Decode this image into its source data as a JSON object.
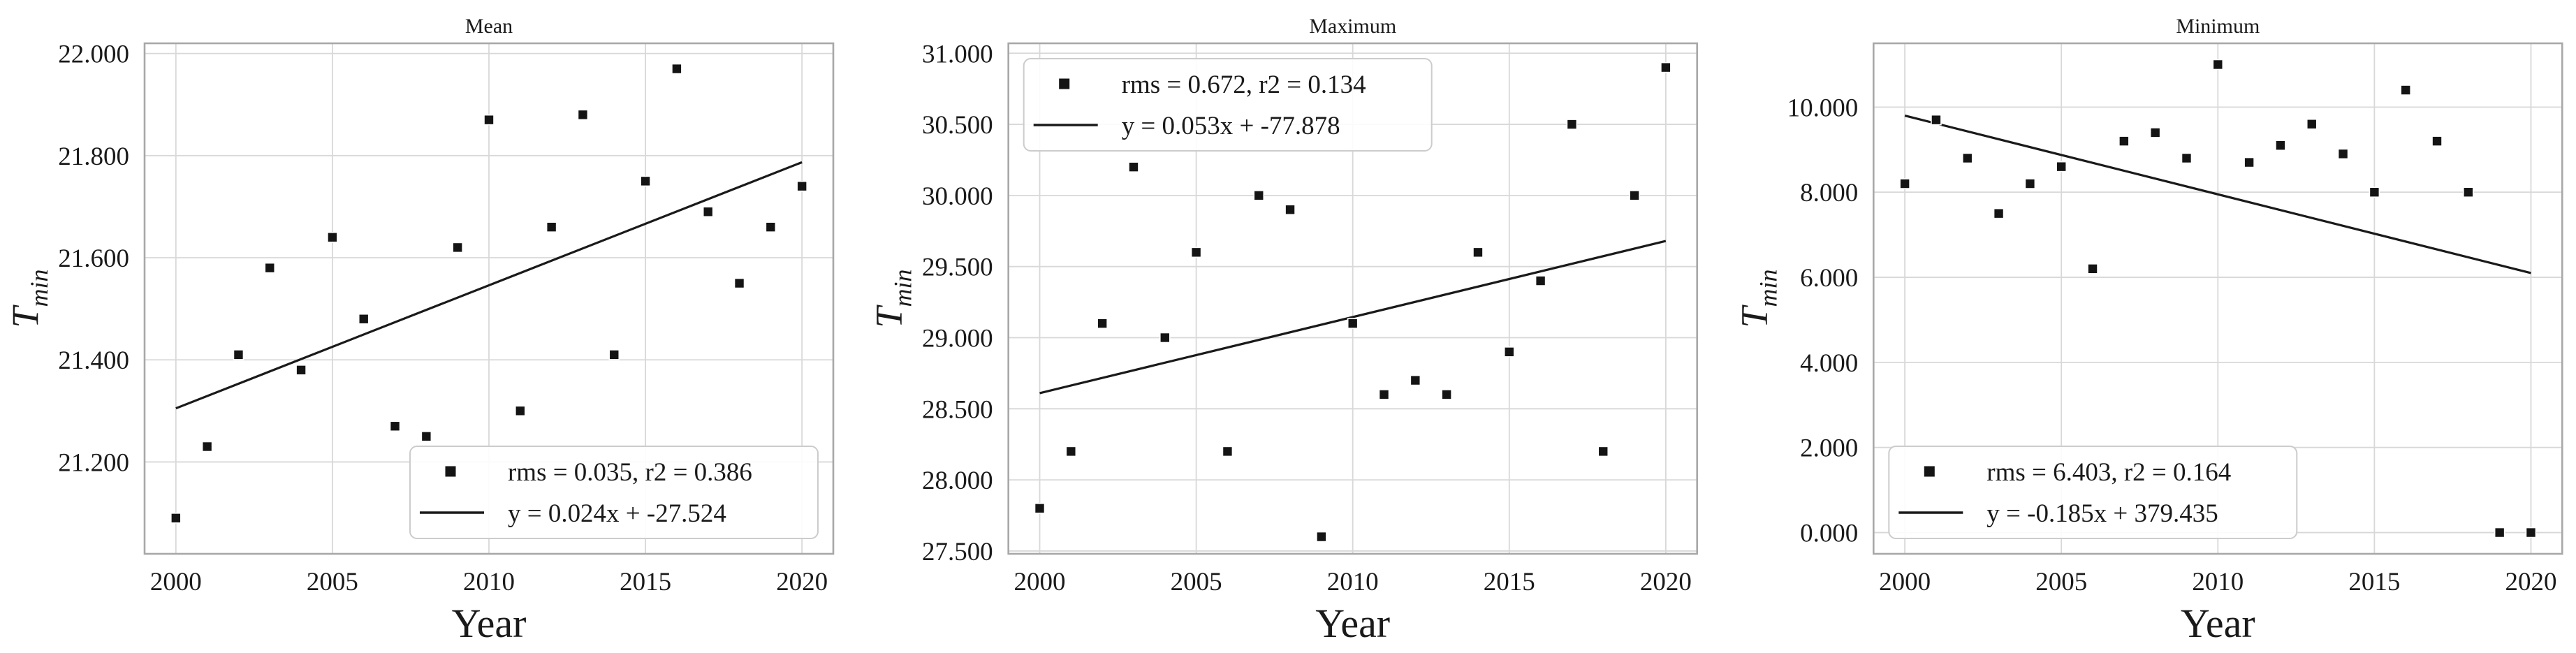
{
  "figure_title": "",
  "colors": {
    "background": "#ffffff",
    "text": "#1a1a1a",
    "title_text": "#262626",
    "grid": "#d8d8d8",
    "spine": "#a8a8a8",
    "marker": "#141414",
    "trend_line": "#1a1a1a",
    "legend_border": "#cccccc",
    "legend_fill": "#ffffff"
  },
  "chart_data": [
    {
      "type": "scatter",
      "title": "Mean",
      "xlabel": "Year",
      "ylabel": "T_min",
      "xlim": [
        1999,
        2021
      ],
      "ylim": [
        21.02,
        22.02
      ],
      "xticks": [
        2000,
        2005,
        2010,
        2015,
        2020
      ],
      "xtick_labels": [
        "2000",
        "2005",
        "2010",
        "2015",
        "2020"
      ],
      "yticks": [
        21.2,
        21.4,
        21.6,
        21.8,
        22.0
      ],
      "ytick_labels": [
        "21.200",
        "21.400",
        "21.600",
        "21.800",
        "22.000"
      ],
      "grid": true,
      "x": [
        2000,
        2001,
        2002,
        2003,
        2004,
        2005,
        2006,
        2007,
        2008,
        2009,
        2010,
        2011,
        2012,
        2013,
        2014,
        2015,
        2016,
        2017,
        2018,
        2019,
        2020
      ],
      "y": [
        21.09,
        21.23,
        21.41,
        21.58,
        21.38,
        21.64,
        21.48,
        21.27,
        21.25,
        21.62,
        21.87,
        21.3,
        21.66,
        21.88,
        21.41,
        21.75,
        21.97,
        21.69,
        21.55,
        21.66,
        21.74
      ],
      "trend": {
        "equation": "y = 0.024x + -27.524",
        "x": [
          2000,
          2020
        ],
        "y": [
          21.305,
          21.787
        ]
      },
      "legend_position": "lower right",
      "legend": [
        {
          "symbol": "square",
          "label": "rms = 0.035, r2 = 0.386"
        },
        {
          "symbol": "line",
          "label": "y = 0.024x + -27.524"
        }
      ]
    },
    {
      "type": "scatter",
      "title": "Maximum",
      "xlabel": "Year",
      "ylabel": "T_min",
      "xlim": [
        1999,
        2021
      ],
      "ylim": [
        27.48,
        31.07
      ],
      "xticks": [
        2000,
        2005,
        2010,
        2015,
        2020
      ],
      "xtick_labels": [
        "2000",
        "2005",
        "2010",
        "2015",
        "2020"
      ],
      "yticks": [
        27.5,
        28.0,
        28.5,
        29.0,
        29.5,
        30.0,
        30.5,
        31.0
      ],
      "ytick_labels": [
        "27.500",
        "28.000",
        "28.500",
        "29.000",
        "29.500",
        "30.000",
        "30.500",
        "31.000"
      ],
      "grid": true,
      "x": [
        2000,
        2001,
        2002,
        2003,
        2004,
        2005,
        2006,
        2007,
        2008,
        2009,
        2010,
        2011,
        2012,
        2013,
        2014,
        2015,
        2016,
        2017,
        2018,
        2019,
        2020
      ],
      "y": [
        27.8,
        28.2,
        29.1,
        30.2,
        29.0,
        29.6,
        28.2,
        30.0,
        29.9,
        27.6,
        29.1,
        28.6,
        28.7,
        28.6,
        29.6,
        28.9,
        29.4,
        30.5,
        28.2,
        30.0,
        30.9
      ],
      "trend": {
        "equation": "y = 0.053x + -77.878",
        "x": [
          2000,
          2020
        ],
        "y": [
          28.61,
          29.68
        ]
      },
      "legend_position": "upper left",
      "legend": [
        {
          "symbol": "square",
          "label": "rms = 0.672, r2 = 0.134"
        },
        {
          "symbol": "line",
          "label": "y = 0.053x + -77.878"
        }
      ]
    },
    {
      "type": "scatter",
      "title": "Minimum",
      "xlabel": "Year",
      "ylabel": "T_min",
      "xlim": [
        1999,
        2021
      ],
      "ylim": [
        -0.5,
        11.5
      ],
      "xticks": [
        2000,
        2005,
        2010,
        2015,
        2020
      ],
      "xtick_labels": [
        "2000",
        "2005",
        "2010",
        "2015",
        "2020"
      ],
      "yticks": [
        0.0,
        2.0,
        4.0,
        6.0,
        8.0,
        10.0
      ],
      "ytick_labels": [
        "0.000",
        "2.000",
        "4.000",
        "6.000",
        "8.000",
        "10.000"
      ],
      "grid": true,
      "x": [
        2000,
        2001,
        2002,
        2003,
        2004,
        2005,
        2006,
        2007,
        2008,
        2009,
        2010,
        2011,
        2012,
        2013,
        2014,
        2015,
        2016,
        2017,
        2018,
        2019,
        2020
      ],
      "y": [
        8.2,
        9.7,
        8.8,
        7.5,
        8.2,
        8.6,
        6.2,
        9.2,
        9.4,
        8.8,
        11.0,
        8.7,
        9.1,
        9.6,
        8.9,
        8.0,
        10.4,
        9.2,
        8.0,
        0.0,
        0.0
      ],
      "trend": {
        "equation": "y = -0.185x + 379.435",
        "x": [
          2000,
          2020
        ],
        "y": [
          9.8,
          6.1
        ]
      },
      "legend_position": "lower left",
      "legend": [
        {
          "symbol": "square",
          "label": "rms = 6.403, r2 = 0.164"
        },
        {
          "symbol": "line",
          "label": "y = -0.185x + 379.435"
        }
      ]
    }
  ]
}
